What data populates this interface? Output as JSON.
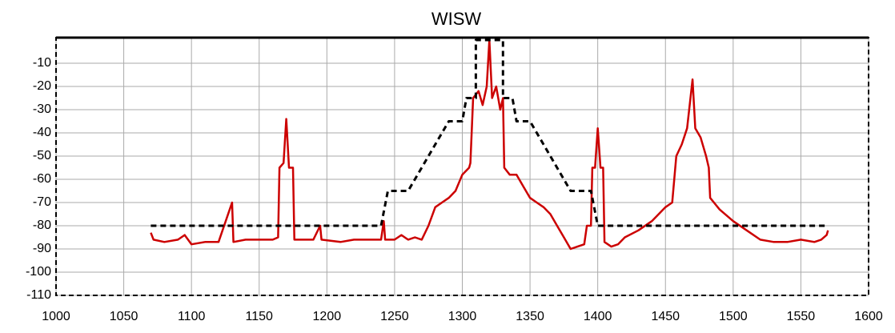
{
  "chart_data": {
    "type": "line",
    "title": "WISW",
    "xlim": [
      1000,
      1600
    ],
    "xticks": [
      1000,
      1050,
      1100,
      1150,
      1200,
      1250,
      1300,
      1350,
      1400,
      1450,
      1500,
      1550,
      1600
    ],
    "ylim": [
      -110,
      0
    ],
    "yticks": [
      -110,
      -100,
      -90,
      -80,
      -70,
      -60,
      -50,
      -40,
      -30,
      -20,
      -10
    ],
    "grid": true,
    "series": [
      {
        "color": "#cc0000",
        "style": "solid",
        "x": [
          1070,
          1072,
          1080,
          1090,
          1095,
          1100,
          1110,
          1120,
          1130,
          1131,
          1140,
          1150,
          1160,
          1164,
          1165,
          1168,
          1170,
          1172,
          1175,
          1176,
          1180,
          1190,
          1195,
          1196,
          1210,
          1220,
          1230,
          1240,
          1242,
          1243,
          1250,
          1255,
          1260,
          1265,
          1270,
          1275,
          1280,
          1285,
          1290,
          1295,
          1300,
          1305,
          1306,
          1308,
          1312,
          1315,
          1318,
          1320,
          1322,
          1325,
          1328,
          1330,
          1331,
          1335,
          1340,
          1345,
          1350,
          1355,
          1360,
          1365,
          1370,
          1375,
          1380,
          1385,
          1390,
          1392,
          1395,
          1396,
          1398,
          1400,
          1402,
          1404,
          1405,
          1410,
          1415,
          1420,
          1430,
          1440,
          1450,
          1455,
          1458,
          1462,
          1466,
          1470,
          1472,
          1476,
          1480,
          1482,
          1483,
          1490,
          1500,
          1510,
          1520,
          1530,
          1540,
          1550,
          1560,
          1565,
          1569,
          1570
        ],
        "values": [
          -83,
          -86,
          -87,
          -86,
          -84,
          -88,
          -87,
          -87,
          -70,
          -87,
          -86,
          -86,
          -86,
          -85,
          -55,
          -53,
          -34,
          -55,
          -55,
          -86,
          -86,
          -86,
          -80,
          -86,
          -87,
          -86,
          -86,
          -86,
          -78,
          -86,
          -86,
          -84,
          -86,
          -85,
          -86,
          -80,
          -72,
          -70,
          -68,
          -65,
          -58,
          -55,
          -53,
          -25,
          -22,
          -28,
          -20,
          0,
          -25,
          -20,
          -30,
          -25,
          -55,
          -58,
          -58,
          -63,
          -68,
          -70,
          -72,
          -75,
          -80,
          -85,
          -90,
          -89,
          -88,
          -80,
          -80,
          -55,
          -55,
          -38,
          -55,
          -55,
          -87,
          -89,
          -88,
          -85,
          -82,
          -78,
          -72,
          -70,
          -50,
          -45,
          -38,
          -17,
          -38,
          -42,
          -50,
          -55,
          -68,
          -73,
          -78,
          -82,
          -86,
          -87,
          -87,
          -86,
          -87,
          -86,
          -84,
          -82
        ]
      },
      {
        "color": "#000000",
        "style": "dashed",
        "x": [
          1070,
          1240,
          1245,
          1260,
          1290,
          1300,
          1303,
          1310,
          1310,
          1330,
          1330,
          1337,
          1340,
          1350,
          1380,
          1395,
          1400,
          1570
        ],
        "values": [
          -80,
          -80,
          -65,
          -65,
          -35,
          -35,
          -25,
          -25,
          0,
          0,
          -25,
          -25,
          -35,
          -35,
          -65,
          -65,
          -80,
          -80
        ]
      }
    ]
  }
}
